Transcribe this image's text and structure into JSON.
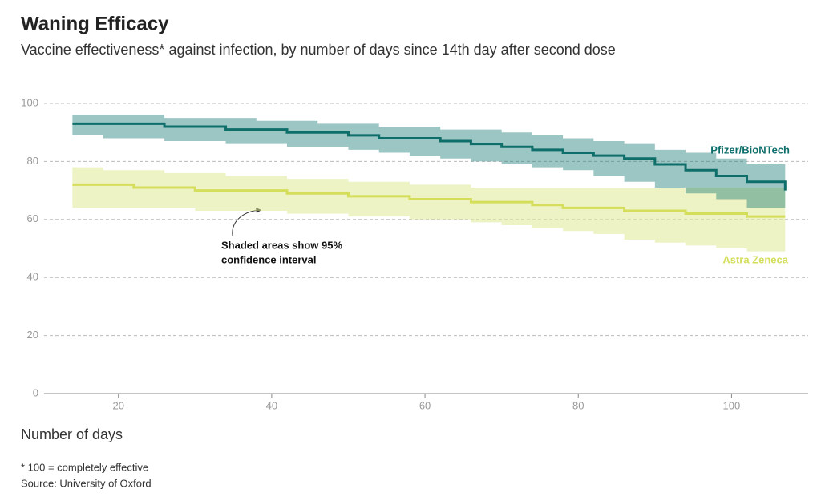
{
  "chart_data": {
    "type": "line",
    "step": true,
    "title": "Waning Efficacy",
    "subtitle": "Vaccine effectiveness* against infection, by number of days since 14th day after second dose",
    "x_label": "Number of days",
    "annotation": [
      "Shaded areas show 95%",
      "confidence interval"
    ],
    "notes": [
      "* 100 = completely effective",
      "Source: University of Oxford"
    ],
    "x": [
      14,
      18,
      22,
      26,
      30,
      34,
      38,
      42,
      46,
      50,
      54,
      58,
      62,
      66,
      70,
      74,
      78,
      82,
      86,
      90,
      94,
      98,
      102,
      107
    ],
    "series": [
      {
        "name": "Pfizer/BioNTech",
        "color": "#0e6e6a",
        "band_color": "rgba(20,120,115,0.42)",
        "values": [
          93,
          93,
          93,
          92,
          92,
          91,
          91,
          90,
          90,
          89,
          88,
          88,
          87,
          86,
          85,
          84,
          83,
          82,
          81,
          79,
          77,
          75,
          73,
          70
        ],
        "upper": [
          96,
          96,
          96,
          95,
          95,
          95,
          94,
          94,
          93,
          93,
          92,
          92,
          91,
          91,
          90,
          89,
          88,
          87,
          86,
          84,
          83,
          81,
          79,
          78
        ],
        "lower": [
          89,
          88,
          88,
          87,
          87,
          86,
          86,
          85,
          85,
          84,
          83,
          82,
          81,
          80,
          79,
          78,
          77,
          75,
          73,
          71,
          69,
          67,
          64,
          61
        ]
      },
      {
        "name": "Astra Zeneca",
        "color": "#d4de5a",
        "band_color": "rgba(222,232,140,0.5)",
        "values": [
          72,
          72,
          71,
          71,
          70,
          70,
          70,
          69,
          69,
          68,
          68,
          67,
          67,
          66,
          66,
          65,
          64,
          64,
          63,
          63,
          62,
          62,
          61,
          61
        ],
        "upper": [
          78,
          77,
          77,
          76,
          76,
          75,
          75,
          74,
          74,
          73,
          73,
          72,
          72,
          71,
          71,
          71,
          71,
          71,
          71,
          71,
          71,
          71,
          71,
          71
        ],
        "lower": [
          64,
          64,
          64,
          64,
          63,
          63,
          63,
          62,
          62,
          61,
          61,
          60,
          60,
          59,
          58,
          57,
          56,
          55,
          53,
          52,
          51,
          50,
          49,
          48
        ]
      }
    ],
    "xlim": [
      10.3,
      110
    ],
    "xticks": [
      20,
      40,
      60,
      80,
      100
    ],
    "ylim": [
      0,
      100
    ],
    "yticks": [
      0,
      20,
      40,
      60,
      80,
      100
    ],
    "grid": true
  }
}
